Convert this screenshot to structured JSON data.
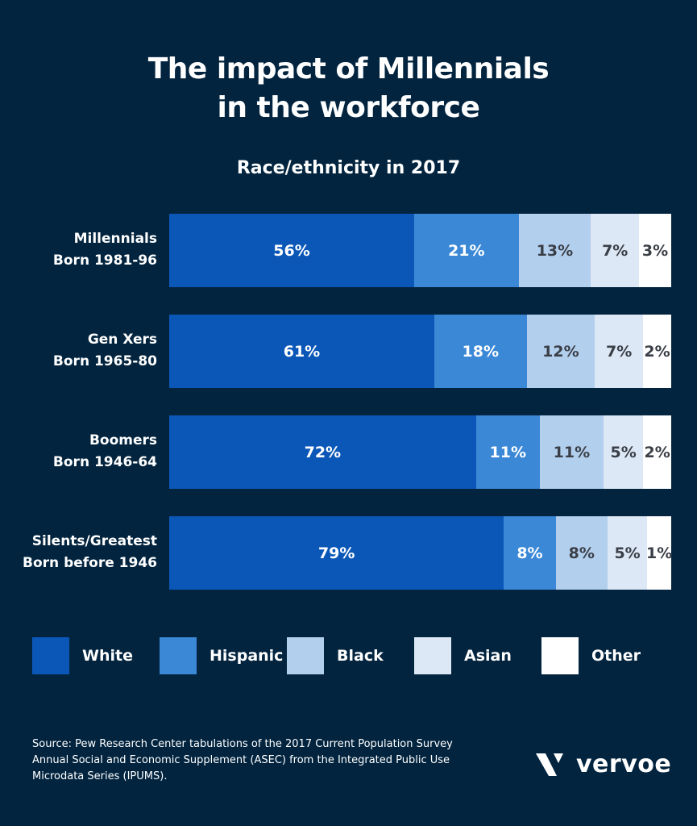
{
  "title_line1": "The impact of Millennials",
  "title_line2": "in the workforce",
  "chart_data": {
    "type": "bar",
    "orientation": "horizontal",
    "stacked": true,
    "subtitle": "Race/ethnicity in 2017",
    "categories": [
      [
        "Millennials",
        "Born 1981-96"
      ],
      [
        "Gen Xers",
        "Born 1965-80"
      ],
      [
        "Boomers",
        "Born 1946-64"
      ],
      [
        "Silents/Greatest",
        "Born before 1946"
      ]
    ],
    "series": [
      {
        "name": "White",
        "values": [
          56,
          61,
          72,
          79
        ],
        "color": "#0b57b8",
        "text_color": "#ffffff"
      },
      {
        "name": "Hispanic",
        "values": [
          21,
          18,
          11,
          8
        ],
        "color": "#3a88d6",
        "text_color": "#ffffff"
      },
      {
        "name": "Black",
        "values": [
          13,
          12,
          11,
          8
        ],
        "color": "#b3cfee",
        "text_color": "#3a3f47"
      },
      {
        "name": "Asian",
        "values": [
          7,
          7,
          5,
          5
        ],
        "color": "#dde8f6",
        "text_color": "#3a3f47"
      },
      {
        "name": "Other",
        "values": [
          3,
          2,
          2,
          1
        ],
        "color": "#ffffff",
        "text_color": "#3a3f47"
      }
    ],
    "unit": "%",
    "legend_position": "bottom",
    "grid": false
  },
  "source": "Source: Pew Research Center tabulations of the 2017 Current Population Survey Annual Social and Economic Supplement (ASEC) from the Integrated Public Use Microdata Series (IPUMS).",
  "logo": {
    "text": "vervoe",
    "icon": "vervoe-v-logo-icon"
  },
  "colors": {
    "background": "#02243f"
  }
}
